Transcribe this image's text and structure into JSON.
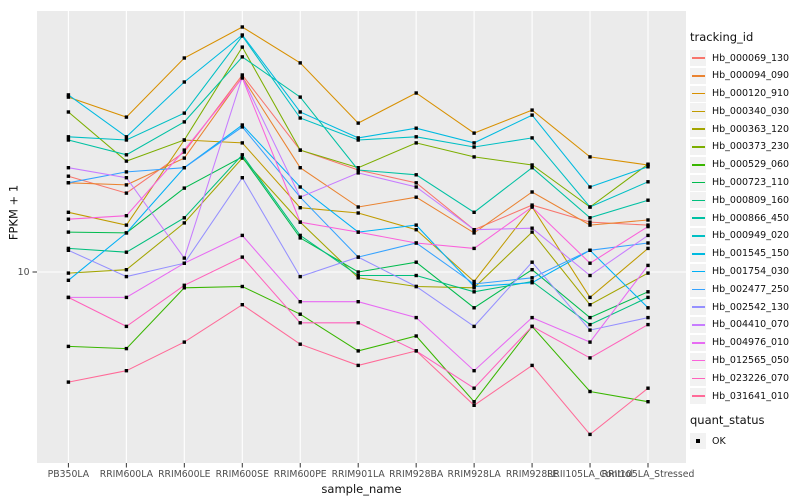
{
  "chart_data": {
    "type": "line",
    "xlabel": "sample_name",
    "ylabel": "FPKM + 1",
    "y_scale": "log10",
    "ylim": [
      1.9,
      99
    ],
    "grid": "major-on-gray-panel",
    "y_ticks": [
      {
        "value": 10,
        "label": "10"
      }
    ],
    "categories": [
      "PB350LA",
      "RRIM600LA",
      "RRIM600LE",
      "RRIM600SE",
      "RRIM600PE",
      "RRIM901LA",
      "RRIM928BA",
      "RRIM928LA",
      "RRIM928LE",
      "RRII105LA_Control",
      "RRII105LA_Stressed"
    ],
    "legend": {
      "position": "right",
      "color_legend_title": "tracking_id",
      "shape_legend_title": "quant_status",
      "shape_entries": [
        {
          "label": "OK",
          "marker": "black-square"
        }
      ]
    },
    "series": [
      {
        "name": "Hb_000069_130",
        "color": "#F8766D",
        "values": [
          23.2,
          20.0,
          28.7,
          56.5,
          29.2,
          24.5,
          21.9,
          14.5,
          18.0,
          15.5,
          15.1
        ]
      },
      {
        "name": "Hb_000094_090",
        "color": "#EA8331",
        "values": [
          21.9,
          21.5,
          27.2,
          55.5,
          25.0,
          17.7,
          19.3,
          14.1,
          20.2,
          15.1,
          15.8
        ]
      },
      {
        "name": "Hb_000120_910",
        "color": "#D89000",
        "values": [
          46.5,
          39.0,
          65.6,
          86.1,
          62.8,
          37.0,
          48.2,
          33.9,
          41.5,
          27.5,
          25.6
        ]
      },
      {
        "name": "Hb_000340_030",
        "color": "#C09B00",
        "values": [
          16.9,
          15.1,
          31.9,
          31.1,
          17.6,
          16.8,
          14.5,
          9.2,
          17.7,
          8.0,
          12.3
        ]
      },
      {
        "name": "Hb_000363_120",
        "color": "#A3A500",
        "values": [
          9.9,
          10.2,
          15.4,
          27.2,
          15.5,
          9.5,
          8.8,
          8.7,
          14.2,
          7.5,
          9.9
        ]
      },
      {
        "name": "Hb_000373_230",
        "color": "#7CAE00",
        "values": [
          40.8,
          26.5,
          31.9,
          72.2,
          29.2,
          25.0,
          31.1,
          27.5,
          25.6,
          17.7,
          25.8
        ]
      },
      {
        "name": "Hb_000529_060",
        "color": "#39B600",
        "values": [
          5.2,
          5.1,
          8.7,
          8.8,
          6.9,
          5.0,
          5.7,
          3.2,
          6.2,
          3.5,
          3.2
        ]
      },
      {
        "name": "Hb_000723_110",
        "color": "#00BB4E",
        "values": [
          14.2,
          14.1,
          20.9,
          27.5,
          13.5,
          10.0,
          10.9,
          7.3,
          10.2,
          6.7,
          8.4
        ]
      },
      {
        "name": "Hb_000809_160",
        "color": "#00BF7D",
        "values": [
          12.3,
          11.9,
          16.1,
          28.0,
          13.8,
          9.7,
          9.7,
          8.4,
          9.2,
          6.3,
          8.0
        ]
      },
      {
        "name": "Hb_000866_450",
        "color": "#00C1A3",
        "values": [
          31.9,
          28.0,
          37.4,
          66.2,
          46.5,
          24.5,
          23.5,
          16.9,
          25.0,
          16.1,
          18.8
        ]
      },
      {
        "name": "Hb_000949_020",
        "color": "#00BFC4",
        "values": [
          32.8,
          31.9,
          40.4,
          79.6,
          38.7,
          31.9,
          32.8,
          30.0,
          32.5,
          17.7,
          22.1
        ]
      },
      {
        "name": "Hb_001545_150",
        "color": "#00BAE0",
        "values": [
          47.4,
          32.8,
          53.1,
          80.3,
          40.8,
          32.5,
          35.4,
          31.1,
          39.7,
          21.1,
          25.2
        ]
      },
      {
        "name": "Hb_001754_030",
        "color": "#00B0F6",
        "values": [
          9.3,
          14.1,
          25.0,
          36.4,
          21.1,
          14.2,
          15.1,
          8.8,
          9.1,
          12.1,
          7.3
        ]
      },
      {
        "name": "Hb_002477_250",
        "color": "#35A2FF",
        "values": [
          21.9,
          24.1,
          25.0,
          35.8,
          19.3,
          11.4,
          12.9,
          9.0,
          9.5,
          12.1,
          12.9
        ]
      },
      {
        "name": "Hb_002542_130",
        "color": "#9590FF",
        "values": [
          12.1,
          9.6,
          10.8,
          22.9,
          9.6,
          11.4,
          8.8,
          6.2,
          10.9,
          6.0,
          6.7
        ]
      },
      {
        "name": "Hb_004410_070",
        "color": "#C77CFF",
        "values": [
          25.0,
          22.9,
          11.3,
          55.5,
          19.3,
          23.9,
          21.1,
          14.5,
          14.7,
          9.7,
          13.8
        ]
      },
      {
        "name": "Hb_004976_010",
        "color": "#E76BF3",
        "values": [
          8.0,
          8.0,
          10.8,
          13.8,
          7.7,
          7.7,
          6.7,
          4.2,
          6.7,
          5.4,
          10.6
        ]
      },
      {
        "name": "Hb_012565_050",
        "color": "#FA62DB",
        "values": [
          15.9,
          16.4,
          29.2,
          55.0,
          15.5,
          14.2,
          12.9,
          12.3,
          17.7,
          10.8,
          14.9
        ]
      },
      {
        "name": "Hb_023226_070",
        "color": "#FF62BC",
        "values": [
          8.0,
          6.2,
          8.9,
          11.4,
          6.4,
          6.4,
          5.0,
          3.6,
          6.2,
          4.7,
          6.3
        ]
      },
      {
        "name": "Hb_031641_010",
        "color": "#FF6A98",
        "values": [
          3.8,
          4.2,
          5.4,
          7.5,
          5.3,
          4.4,
          5.0,
          3.1,
          4.4,
          2.4,
          3.6
        ]
      }
    ]
  },
  "colors": {
    "figure_background": "#FFFFFF",
    "panel_background": "#EBEBEB",
    "gridline": "#FFFFFF",
    "axis_text": "#4D4D4D",
    "axis_title": "#111111",
    "tick_mark": "#333333",
    "marker": "#000000",
    "legend_key_background": "#F2F2F2"
  }
}
